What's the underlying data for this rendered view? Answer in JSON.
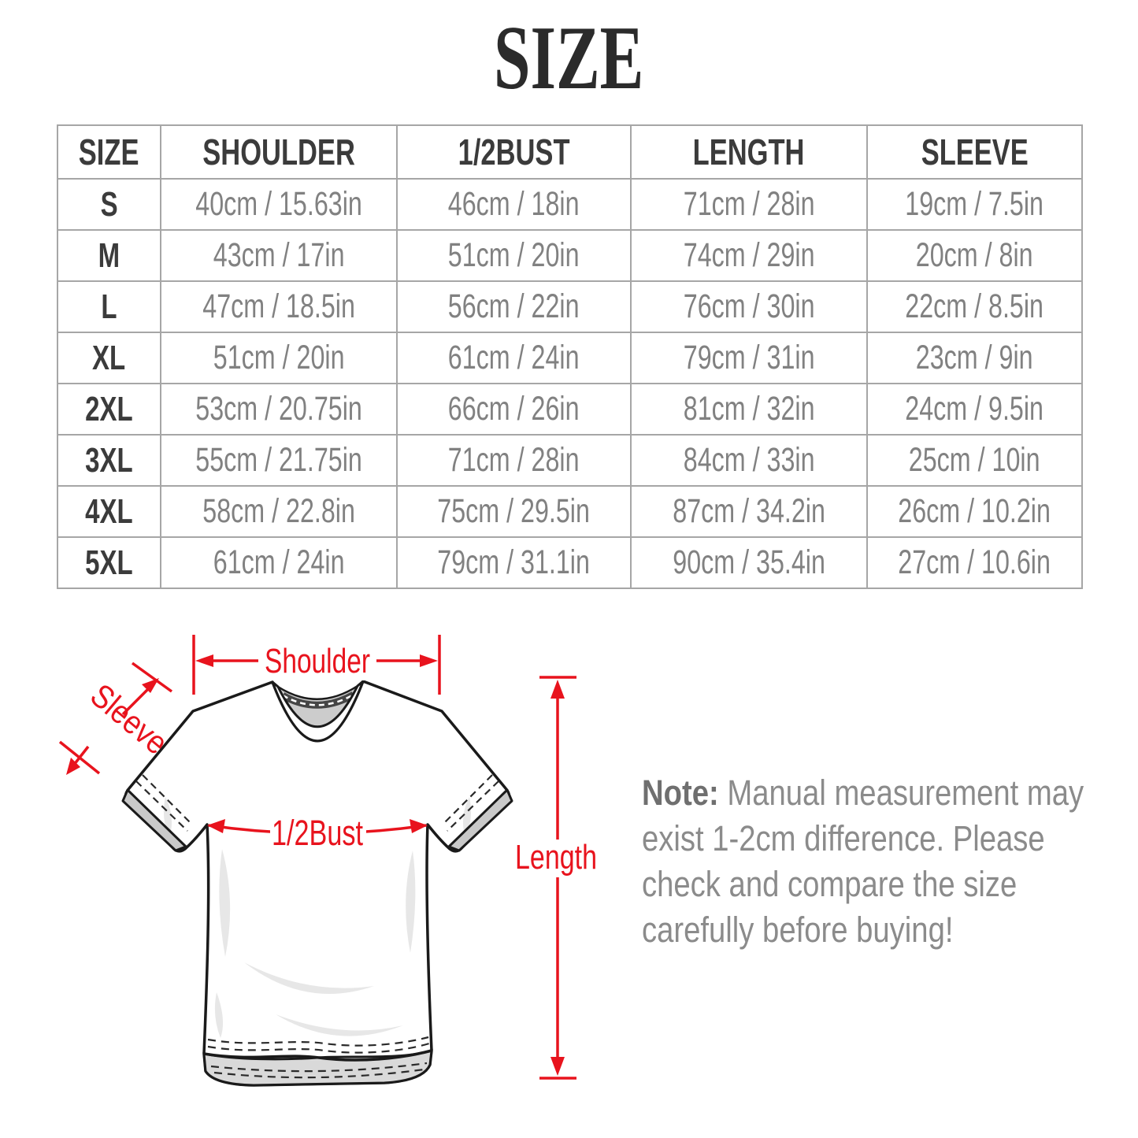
{
  "title": "SIZE",
  "table": {
    "headers": [
      "SIZE",
      "SHOULDER",
      "1/2BUST",
      "LENGTH",
      "SLEEVE"
    ],
    "rows": [
      {
        "size": "S",
        "shoulder": "40cm / 15.63in",
        "bust": "46cm / 18in",
        "length": "71cm / 28in",
        "sleeve": "19cm / 7.5in"
      },
      {
        "size": "M",
        "shoulder": "43cm / 17in",
        "bust": "51cm / 20in",
        "length": "74cm / 29in",
        "sleeve": "20cm / 8in"
      },
      {
        "size": "L",
        "shoulder": "47cm / 18.5in",
        "bust": "56cm / 22in",
        "length": "76cm / 30in",
        "sleeve": "22cm / 8.5in"
      },
      {
        "size": "XL",
        "shoulder": "51cm / 20in",
        "bust": "61cm / 24in",
        "length": "79cm / 31in",
        "sleeve": "23cm / 9in"
      },
      {
        "size": "2XL",
        "shoulder": "53cm / 20.75in",
        "bust": "66cm / 26in",
        "length": "81cm / 32in",
        "sleeve": "24cm / 9.5in"
      },
      {
        "size": "3XL",
        "shoulder": "55cm / 21.75in",
        "bust": "71cm / 28in",
        "length": "84cm / 33in",
        "sleeve": "25cm / 10in"
      },
      {
        "size": "4XL",
        "shoulder": "58cm / 22.8in",
        "bust": "75cm / 29.5in",
        "length": "87cm / 34.2in",
        "sleeve": "26cm / 10.2in"
      },
      {
        "size": "5XL",
        "shoulder": "61cm / 24in",
        "bust": "79cm / 31.1in",
        "length": "90cm / 35.4in",
        "sleeve": "27cm / 10.6in"
      }
    ]
  },
  "diagram": {
    "shoulder_label": "Shoulder",
    "sleeve_label": "Sleeve",
    "bust_label": "1/2Bust",
    "length_label": "Length"
  },
  "note": {
    "label": "Note:",
    "text": " Manual measurement may exist 1-2cm difference. Please check and compare the size carefully before buying!"
  },
  "colors": {
    "accent_red": "#e8131d",
    "header_text": "#3b3b3b",
    "value_text": "#818181",
    "note_text": "#8b8b8b",
    "table_border": "#a6a6a6",
    "collar_gray": "#cccccc",
    "hem_gray": "#d9d9d9"
  }
}
